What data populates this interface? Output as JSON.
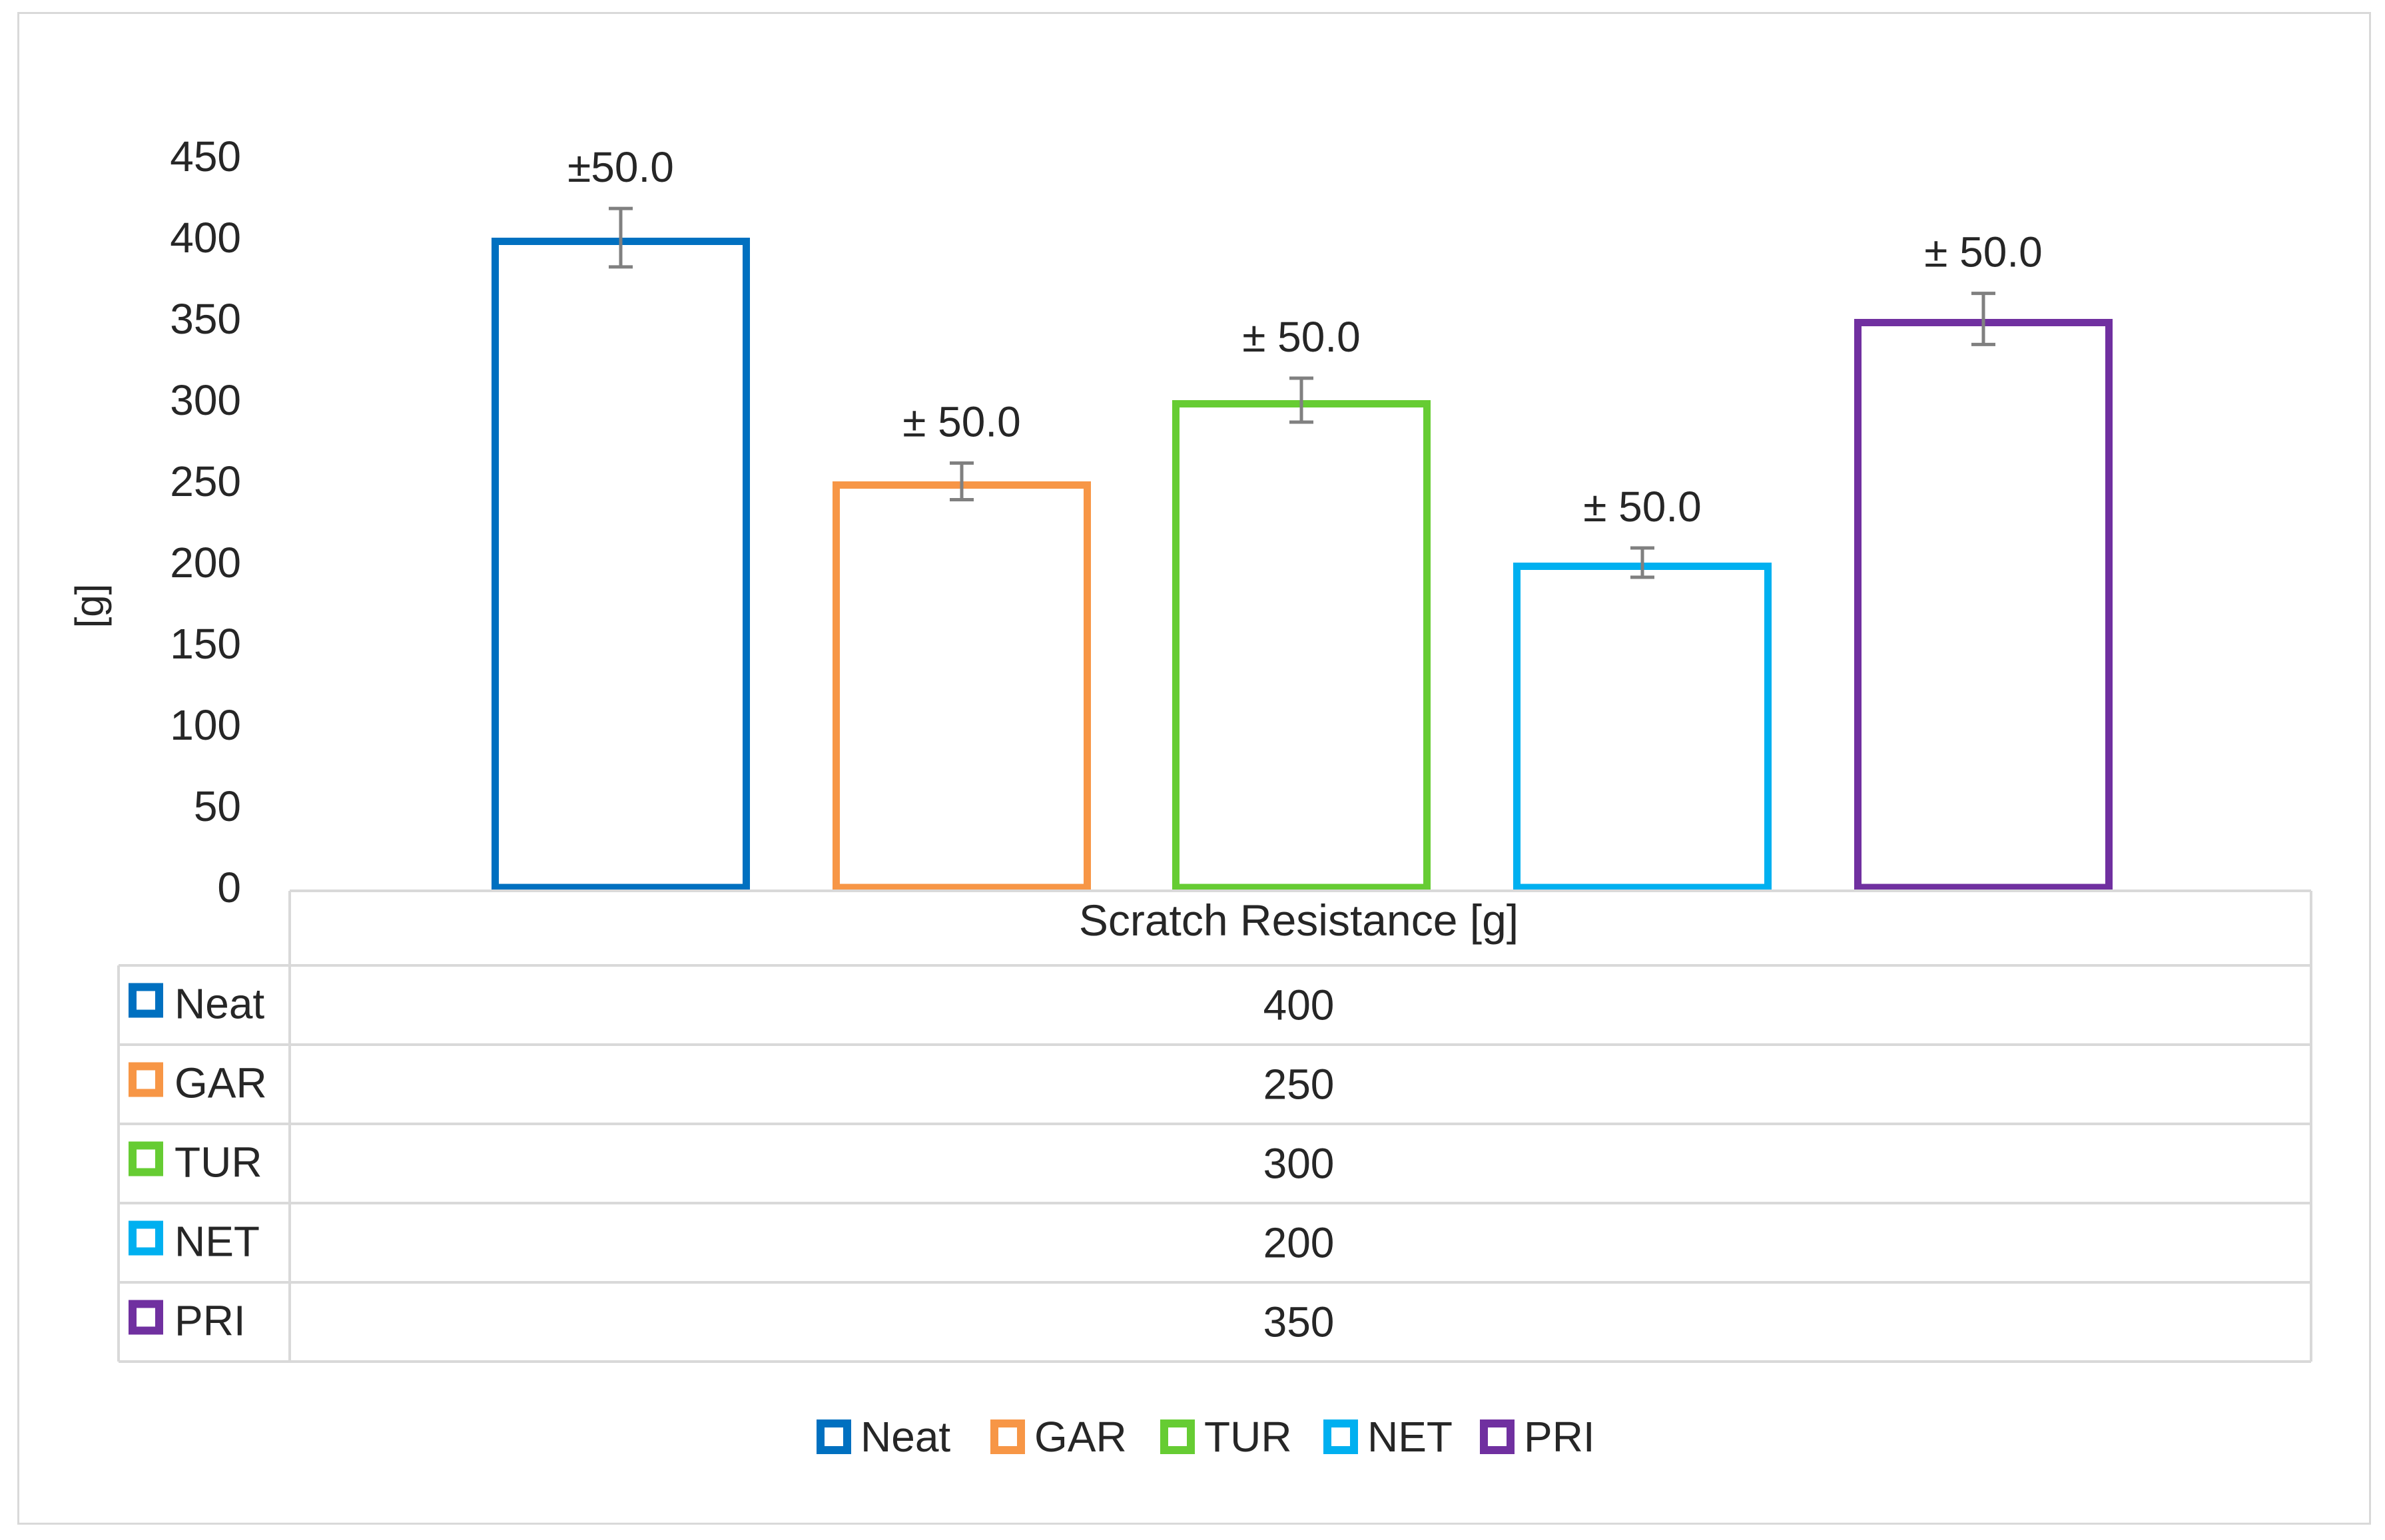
{
  "chart_data": {
    "type": "bar",
    "title": "",
    "ylabel": "[g]",
    "xlabel": "",
    "ylim": [
      0,
      450
    ],
    "yticks": [
      0,
      50,
      100,
      150,
      200,
      250,
      300,
      350,
      400,
      450
    ],
    "category": "Scratch Resistance [g]",
    "grid": false,
    "legend_position": "bottom",
    "series": [
      {
        "name": "Neat",
        "value": 400,
        "error_label": "±50.0",
        "color": "#0070C0"
      },
      {
        "name": "GAR",
        "value": 250,
        "error_label": "± 50.0",
        "color": "#F79646"
      },
      {
        "name": "TUR",
        "value": 300,
        "error_label": "± 50.0",
        "color": "#66CC33"
      },
      {
        "name": "NET",
        "value": 200,
        "error_label": "± 50.0",
        "color": "#00B0F0"
      },
      {
        "name": "PRI",
        "value": 350,
        "error_label": "± 50.0",
        "color": "#7030A0"
      }
    ],
    "error_bar_color": "#808080",
    "data_table": true
  }
}
